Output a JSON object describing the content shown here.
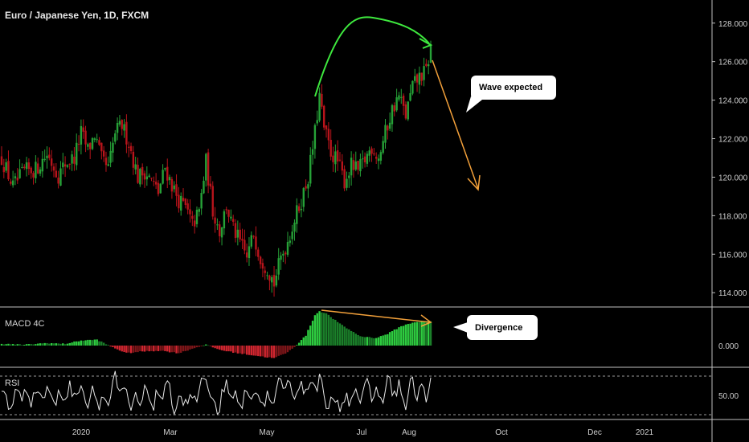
{
  "chart_data": {
    "type": "candlestick",
    "title": "Euro / Japanese Yen, 1D, FXCM",
    "price_axis": {
      "ylim": [
        113.3,
        129.2
      ],
      "ticks": [
        "128.000",
        "126.000",
        "124.000",
        "122.000",
        "120.000",
        "118.000",
        "116.000",
        "114.000"
      ],
      "tick_values": [
        128,
        126,
        124,
        122,
        120,
        118,
        116,
        114
      ]
    },
    "x_axis": {
      "labels": [
        "2020",
        "Mar",
        "May",
        "Jul",
        "Aug",
        "Oct",
        "Dec",
        "2021"
      ]
    },
    "price_anchors": [
      [
        0,
        121.0
      ],
      [
        5,
        119.5
      ],
      [
        10,
        120.3
      ],
      [
        15,
        120.4
      ],
      [
        20,
        121.2
      ],
      [
        25,
        120.1
      ],
      [
        28,
        120.7
      ],
      [
        32,
        121.0
      ],
      [
        35,
        122.3
      ],
      [
        38,
        121.4
      ],
      [
        41,
        122.2
      ],
      [
        44,
        120.9
      ],
      [
        47,
        120.4
      ],
      [
        50,
        122.3
      ],
      [
        53,
        122.7
      ],
      [
        56,
        121.8
      ],
      [
        60,
        120.0
      ],
      [
        63,
        120.3
      ],
      [
        66,
        119.8
      ],
      [
        69,
        119.2
      ],
      [
        72,
        120.5
      ],
      [
        75,
        119.6
      ],
      [
        78,
        118.8
      ],
      [
        81,
        118.4
      ],
      [
        84,
        117.5
      ],
      [
        87,
        118.2
      ],
      [
        90,
        120.8
      ],
      [
        93,
        118.3
      ],
      [
        96,
        117.2
      ],
      [
        99,
        118.5
      ],
      [
        102,
        117.3
      ],
      [
        105,
        116.6
      ],
      [
        108,
        115.8
      ],
      [
        111,
        117.1
      ],
      [
        114,
        115.8
      ],
      [
        117,
        115.3
      ],
      [
        120,
        114.5
      ],
      [
        123,
        115.8
      ],
      [
        126,
        116.7
      ],
      [
        129,
        117.8
      ],
      [
        132,
        118.8
      ],
      [
        135,
        120.0
      ],
      [
        138,
        122.3
      ],
      [
        140,
        124.2
      ],
      [
        142,
        122.5
      ],
      [
        145,
        121.3
      ],
      [
        148,
        120.8
      ],
      [
        151,
        119.8
      ],
      [
        154,
        120.6
      ],
      [
        157,
        120.3
      ],
      [
        160,
        120.9
      ],
      [
        163,
        121.6
      ],
      [
        166,
        121.0
      ],
      [
        169,
        122.3
      ],
      [
        172,
        123.5
      ],
      [
        175,
        124.2
      ],
      [
        178,
        123.2
      ],
      [
        181,
        124.7
      ],
      [
        184,
        125.2
      ],
      [
        187,
        125.5
      ],
      [
        189,
        126.7
      ]
    ],
    "macd": {
      "zero_label": "0.000",
      "anchors": [
        [
          0,
          0.1
        ],
        [
          10,
          0.05
        ],
        [
          20,
          0.15
        ],
        [
          28,
          0.1
        ],
        [
          35,
          0.3
        ],
        [
          42,
          0.35
        ],
        [
          48,
          -0.05
        ],
        [
          55,
          -0.45
        ],
        [
          62,
          -0.35
        ],
        [
          70,
          -0.3
        ],
        [
          78,
          -0.45
        ],
        [
          86,
          -0.1
        ],
        [
          90,
          0.05
        ],
        [
          96,
          -0.25
        ],
        [
          104,
          -0.45
        ],
        [
          112,
          -0.6
        ],
        [
          120,
          -0.75
        ],
        [
          126,
          -0.4
        ],
        [
          130,
          0.05
        ],
        [
          134,
          0.6
        ],
        [
          138,
          1.8
        ],
        [
          140,
          2.05
        ],
        [
          143,
          1.9
        ],
        [
          150,
          1.2
        ],
        [
          158,
          0.55
        ],
        [
          165,
          0.45
        ],
        [
          170,
          0.7
        ],
        [
          176,
          1.15
        ],
        [
          182,
          1.4
        ],
        [
          189,
          1.45
        ]
      ]
    },
    "rsi": {
      "tick_label": "50.00",
      "tick_value": 50,
      "bands": [
        30,
        70
      ],
      "series_seed": 7
    },
    "annotations": {
      "callout_top": "Wave expected",
      "callout_bottom": "Divergence"
    }
  },
  "panes": {
    "macd_label": "MACD 4C",
    "rsi_label": "RSI"
  },
  "colors": {
    "background": "#000000",
    "bull": "#26a137",
    "bear": "#b8141b",
    "macd_up_strong": "#2ecc40",
    "macd_up_weak": "#1b7f2a",
    "macd_down_strong": "#d22630",
    "macd_down_weak": "#7f1619",
    "rsi_line": "#e8e8e8",
    "axis_text": "#cfcfcf",
    "separator": "#bfbfbf",
    "arc_green": "#3ee83e",
    "arrow_orange": "#f2a03a"
  }
}
